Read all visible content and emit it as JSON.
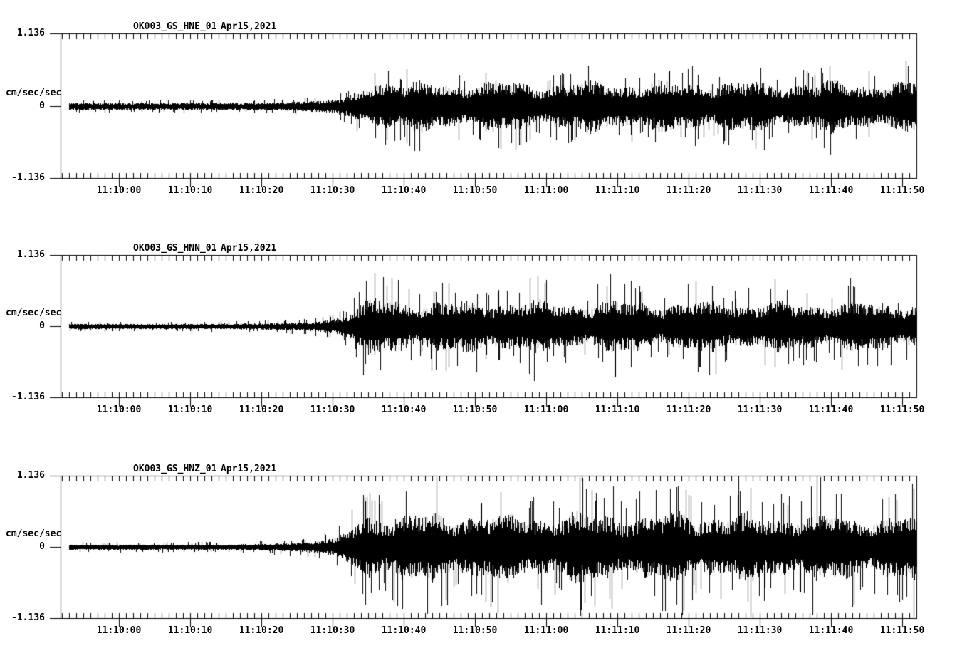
{
  "page": {
    "background": "#ffffff",
    "ink": "#000000"
  },
  "chart_data": [
    {
      "type": "line",
      "title": "OK003_GS_HNE_01",
      "date_label": "Apr15,2021",
      "ylabel": "cm/sec/sec",
      "ylim": [
        -1.136,
        1.136
      ],
      "y_tick_labels": [
        "1.136",
        "0",
        "-1.136"
      ],
      "x_tick_labels": [
        "11:10:00",
        "11:10:10",
        "11:10:20",
        "11:10:30",
        "11:10:40",
        "11:10:50",
        "11:11:00",
        "11:11:10",
        "11:11:20",
        "11:11:30",
        "11:11:40",
        "11:11:50"
      ],
      "x_major_interval_s": 10,
      "x_minor_interval_s": 1,
      "x_axis_start_s": -8.2,
      "x_axis_end_s": 112.0,
      "trace_start_s": -7.0,
      "grid": false,
      "envelope_points": [
        [
          -7,
          0.055
        ],
        [
          18,
          0.055
        ],
        [
          24,
          0.065
        ],
        [
          29,
          0.09
        ],
        [
          32,
          0.14
        ],
        [
          34,
          0.24
        ],
        [
          36,
          0.4
        ],
        [
          38,
          0.36
        ],
        [
          44,
          0.32
        ],
        [
          52,
          0.35
        ],
        [
          60,
          0.32
        ],
        [
          68,
          0.35
        ],
        [
          76,
          0.33
        ],
        [
          84,
          0.35
        ],
        [
          92,
          0.33
        ],
        [
          100,
          0.35
        ],
        [
          106,
          0.33
        ],
        [
          112,
          0.34
        ]
      ],
      "spike_chance": 0.07,
      "spike_gain_range": [
        1.35,
        1.8
      ],
      "seed": 11
    },
    {
      "type": "line",
      "title": "OK003_GS_HNN_01",
      "date_label": "Apr15,2021",
      "ylabel": "cm/sec/sec",
      "ylim": [
        -1.136,
        1.136
      ],
      "y_tick_labels": [
        "1.136",
        "0",
        "-1.136"
      ],
      "x_tick_labels": [
        "11:10:00",
        "11:10:10",
        "11:10:20",
        "11:10:30",
        "11:10:40",
        "11:10:50",
        "11:11:00",
        "11:11:10",
        "11:11:20",
        "11:11:30",
        "11:11:40",
        "11:11:50"
      ],
      "x_major_interval_s": 10,
      "x_minor_interval_s": 1,
      "x_axis_start_s": -8.2,
      "x_axis_end_s": 112.0,
      "trace_start_s": -7.0,
      "grid": false,
      "envelope_points": [
        [
          -7,
          0.038
        ],
        [
          15,
          0.038
        ],
        [
          22,
          0.05
        ],
        [
          27,
          0.07
        ],
        [
          30,
          0.11
        ],
        [
          32,
          0.18
        ],
        [
          34,
          0.32
        ],
        [
          36,
          0.4
        ],
        [
          40,
          0.37
        ],
        [
          46,
          0.35
        ],
        [
          54,
          0.37
        ],
        [
          62,
          0.34
        ],
        [
          70,
          0.36
        ],
        [
          78,
          0.34
        ],
        [
          86,
          0.35
        ],
        [
          94,
          0.33
        ],
        [
          102,
          0.34
        ],
        [
          112,
          0.34
        ]
      ],
      "spike_chance": 0.07,
      "spike_gain_range": [
        1.4,
        2.0
      ],
      "seed": 23
    },
    {
      "type": "line",
      "title": "OK003_GS_HNZ_01",
      "date_label": "Apr15,2021",
      "ylabel": "cm/sec/sec",
      "ylim": [
        -1.136,
        1.136
      ],
      "y_tick_labels": [
        "1.136",
        "0",
        "-1.136"
      ],
      "x_tick_labels": [
        "11:10:00",
        "11:10:10",
        "11:10:20",
        "11:10:30",
        "11:10:40",
        "11:10:50",
        "11:11:00",
        "11:11:10",
        "11:11:20",
        "11:11:30",
        "11:11:40",
        "11:11:50"
      ],
      "x_major_interval_s": 10,
      "x_minor_interval_s": 1,
      "x_axis_start_s": -8.2,
      "x_axis_end_s": 112.0,
      "trace_start_s": -7.0,
      "grid": false,
      "envelope_points": [
        [
          -7,
          0.038
        ],
        [
          15,
          0.038
        ],
        [
          22,
          0.055
        ],
        [
          27,
          0.08
        ],
        [
          30,
          0.13
        ],
        [
          32,
          0.22
        ],
        [
          34,
          0.44
        ],
        [
          36,
          0.5
        ],
        [
          40,
          0.47
        ],
        [
          48,
          0.49
        ],
        [
          56,
          0.45
        ],
        [
          64,
          0.48
        ],
        [
          72,
          0.46
        ],
        [
          80,
          0.48
        ],
        [
          88,
          0.45
        ],
        [
          96,
          0.47
        ],
        [
          104,
          0.44
        ],
        [
          112,
          0.46
        ]
      ],
      "spike_chance": 0.09,
      "spike_gain_range": [
        1.5,
        2.1
      ],
      "seed": 37
    }
  ]
}
